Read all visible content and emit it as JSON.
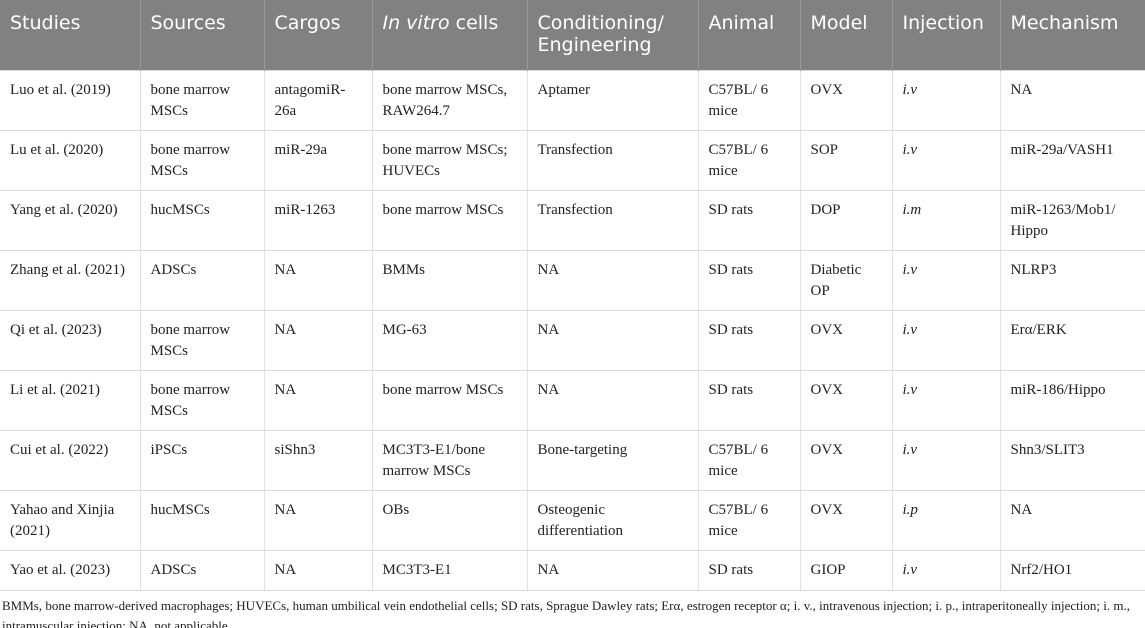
{
  "table": {
    "headers": [
      "Studies",
      "Sources",
      "Cargos",
      {
        "italic": "In vitro",
        "text": "cells"
      },
      "Conditioning/ Engineering",
      "Animal",
      "Model",
      "Injection",
      "Mechanism"
    ],
    "rows": [
      [
        "Luo et al. (2019)",
        "bone marrow MSCs",
        "antagomiR-26a",
        "bone marrow MSCs, RAW264.7",
        "Aptamer",
        "C57BL/ 6 mice",
        "OVX",
        "i.v",
        "NA"
      ],
      [
        "Lu et al. (2020)",
        "bone marrow MSCs",
        "miR-29a",
        "bone marrow MSCs; HUVECs",
        "Transfection",
        "C57BL/ 6 mice",
        "SOP",
        "i.v",
        "miR-29a/VASH1"
      ],
      [
        "Yang et al. (2020)",
        "hucMSCs",
        "miR-1263",
        "bone marrow MSCs",
        "Transfection",
        "SD rats",
        "DOP",
        "i.m",
        "miR-1263/Mob1/ Hippo"
      ],
      [
        "Zhang et al. (2021)",
        "ADSCs",
        "NA",
        "BMMs",
        "NA",
        "SD rats",
        "Diabetic OP",
        "i.v",
        "NLRP3"
      ],
      [
        "Qi et al. (2023)",
        "bone marrow MSCs",
        "NA",
        "MG-63",
        "NA",
        "SD rats",
        "OVX",
        "i.v",
        "Erα/ERK"
      ],
      [
        "Li et al. (2021)",
        "bone marrow MSCs",
        "NA",
        "bone marrow MSCs",
        "NA",
        "SD rats",
        "OVX",
        "i.v",
        "miR-186/Hippo"
      ],
      [
        "Cui et al. (2022)",
        "iPSCs",
        "siShn3",
        "MC3T3-E1/bone marrow MSCs",
        "Bone-targeting",
        "C57BL/ 6 mice",
        "OVX",
        "i.v",
        "Shn3/SLIT3"
      ],
      [
        "Yahao and Xinjia (2021)",
        "hucMSCs",
        "NA",
        "OBs",
        "Osteogenic differentiation",
        "C57BL/ 6 mice",
        "OVX",
        "i.p",
        "NA"
      ],
      [
        "Yao et al. (2023)",
        "ADSCs",
        "NA",
        "MC3T3-E1",
        "NA",
        "SD rats",
        "GIOP",
        "i.v",
        "Nrf2/HO1"
      ]
    ],
    "footnote": "BMMs, bone marrow-derived macrophages; HUVECs, human umbilical vein endothelial cells; SD rats, Sprague Dawley rats; Erα, estrogen receptor α; i. v., intravenous injection; i. p., intraperitoneally injection; i. m., intramuscular injection; NA, not applicable."
  }
}
